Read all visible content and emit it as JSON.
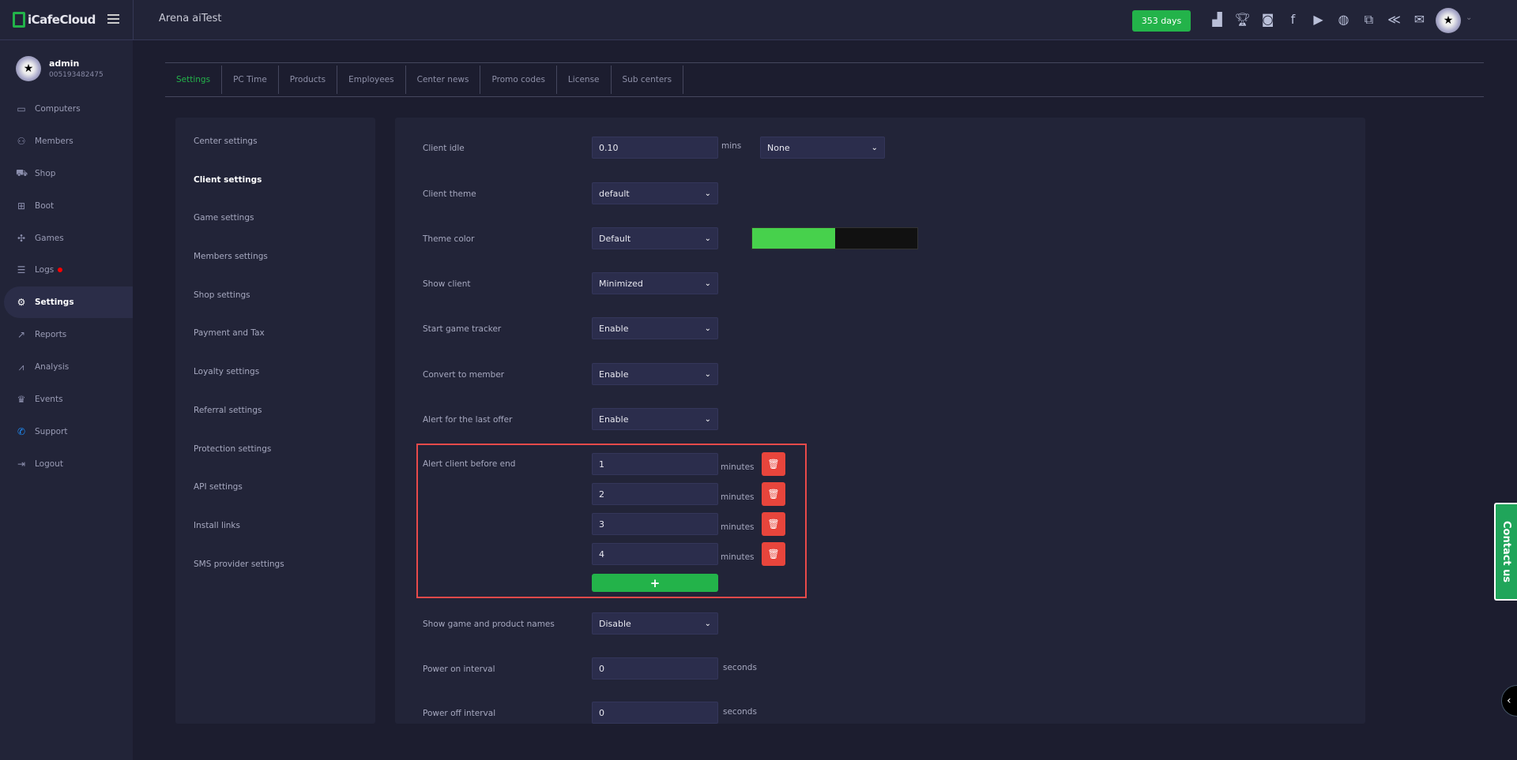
{
  "header": {
    "logo": "iCafeCloud",
    "title": "Arena aiTest",
    "days_badge": "353 days",
    "icons": [
      "leaderboard-icon",
      "trophy-icon",
      "discord-icon",
      "facebook-icon",
      "youtube-icon",
      "globe-icon",
      "icafe-icon",
      "brand-icon",
      "mail-icon"
    ]
  },
  "user": {
    "name": "admin",
    "id": "005193482475"
  },
  "sidebar": {
    "items": [
      {
        "label": "Computers",
        "icon": "monitor-icon",
        "glyph": "▭"
      },
      {
        "label": "Members",
        "icon": "users-icon",
        "glyph": "⚇"
      },
      {
        "label": "Shop",
        "icon": "cart-icon",
        "glyph": "⛟"
      },
      {
        "label": "Boot",
        "icon": "windows-icon",
        "glyph": "⊞"
      },
      {
        "label": "Games",
        "icon": "gamepad-icon",
        "glyph": "✣"
      },
      {
        "label": "Logs",
        "icon": "list-icon",
        "glyph": "☰"
      },
      {
        "label": "Settings",
        "icon": "gear-icon",
        "glyph": "⚙"
      },
      {
        "label": "Reports",
        "icon": "line-chart-icon",
        "glyph": "↗"
      },
      {
        "label": "Analysis",
        "icon": "area-chart-icon",
        "glyph": "⩘"
      },
      {
        "label": "Events",
        "icon": "crown-icon",
        "glyph": "♛"
      },
      {
        "label": "Support",
        "icon": "phone-icon",
        "glyph": "✆"
      },
      {
        "label": "Logout",
        "icon": "logout-icon",
        "glyph": "⇥"
      }
    ]
  },
  "tabs": [
    "Settings",
    "PC Time",
    "Products",
    "Employees",
    "Center news",
    "Promo codes",
    "License",
    "Sub centers"
  ],
  "settings_menu": [
    "Center settings",
    "Client settings",
    "Game settings",
    "Members settings",
    "Shop settings",
    "Payment and Tax",
    "Loyalty settings",
    "Referral settings",
    "Protection settings",
    "API settings",
    "Install links",
    "SMS provider settings"
  ],
  "form": {
    "client_idle": {
      "label": "Client idle",
      "value": "0.10",
      "unit": "mins",
      "action": "None"
    },
    "client_theme": {
      "label": "Client theme",
      "value": "default"
    },
    "theme_color": {
      "label": "Theme color",
      "value": "Default",
      "primary": "#47d14c",
      "secondary": "#111111"
    },
    "show_client": {
      "label": "Show client",
      "value": "Minimized"
    },
    "start_game_tracker": {
      "label": "Start game tracker",
      "value": "Enable"
    },
    "convert_to_member": {
      "label": "Convert to member",
      "value": "Enable"
    },
    "alert_last_offer": {
      "label": "Alert for the last offer",
      "value": "Enable"
    },
    "alert_before_end": {
      "label": "Alert client before end",
      "unit": "minutes",
      "values": [
        "1",
        "2",
        "3",
        "4"
      ],
      "add": "+"
    },
    "show_names": {
      "label": "Show game and product names",
      "value": "Disable"
    },
    "power_on": {
      "label": "Power on interval",
      "value": "0",
      "unit": "seconds"
    },
    "power_off": {
      "label": "Power off interval",
      "value": "0",
      "unit": "seconds"
    }
  },
  "contact": "Contact us",
  "colors": {
    "accent": "#23b34a",
    "danger": "#e8453c",
    "highlight": "#e84a4a"
  }
}
